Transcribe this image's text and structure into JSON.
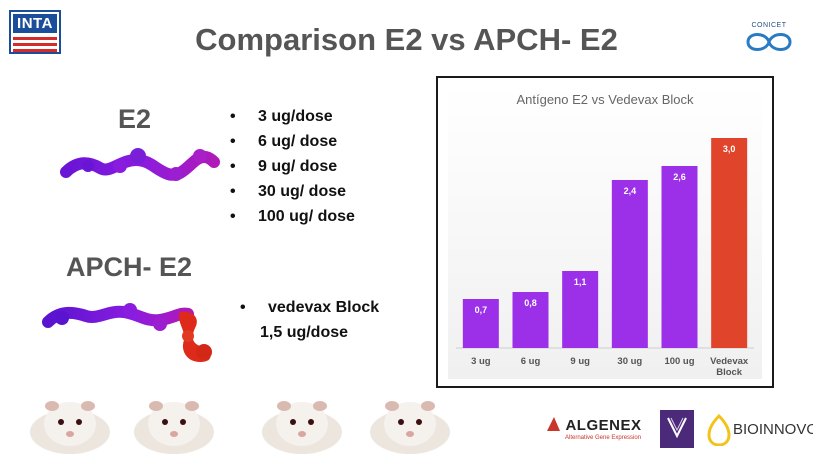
{
  "slide": {
    "title": "Comparison E2  vs APCH- E2",
    "logos": {
      "inta": "INTA",
      "conicet": "CONICET",
      "algenex": "ALGENEX",
      "algenex_tagline": "Alternative Gene Expression",
      "bioinnovo": "BIOINNOVO"
    },
    "e2": {
      "heading": "E2",
      "doses": [
        "3 ug/dose",
        "6 ug/ dose",
        "9 ug/ dose",
        "30 ug/ dose",
        "100 ug/ dose"
      ]
    },
    "apch": {
      "heading": "APCH- E2",
      "doses": [
        "vedevax Block",
        "1,5 ug/dose"
      ]
    },
    "colors": {
      "title": "#555555",
      "e2_bar": "#9b30e8",
      "vedevax_bar": "#e0452b",
      "molecule_purple": "#7a1fd8",
      "molecule_red": "#dd2a1a",
      "inta_blue": "#1b4e9a",
      "inta_red": "#d42a2a"
    },
    "icons": [
      "protein-molecule-image",
      "guinea-pig-image"
    ]
  },
  "chart_data": {
    "type": "bar",
    "title": "Antígeno E2 vs Vedevax Block",
    "categories": [
      "3 ug",
      "6 ug",
      "9 ug",
      "30 ug",
      "100 ug",
      "Vedevax Block"
    ],
    "values": [
      0.7,
      0.8,
      1.1,
      2.4,
      2.6,
      3.0
    ],
    "value_labels": [
      "0,7",
      "0,8",
      "1,1",
      "2,4",
      "2,6",
      "3,0"
    ],
    "bar_colors": [
      "#9b30e8",
      "#9b30e8",
      "#9b30e8",
      "#9b30e8",
      "#9b30e8",
      "#e0452b"
    ],
    "xlabel": "",
    "ylabel": "",
    "ylim": [
      0,
      3.2
    ],
    "grid": false,
    "legend": "none"
  }
}
